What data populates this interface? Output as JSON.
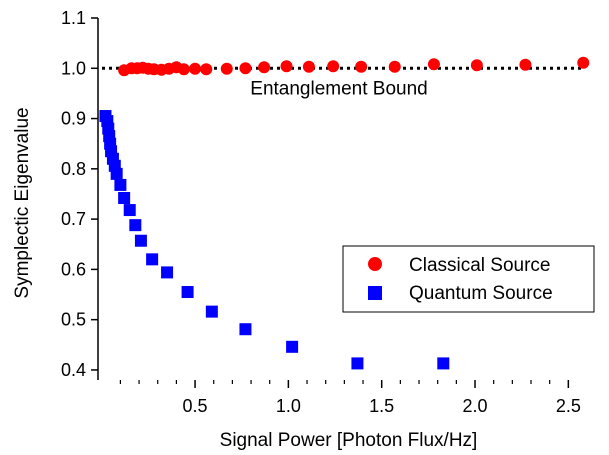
{
  "chart_data": {
    "type": "scatter",
    "title": "",
    "xlabel": "Signal Power [Photon Flux/Hz]",
    "ylabel": "Symplectic Eigenvalue",
    "xlim": [
      -0.02,
      2.6
    ],
    "ylim": [
      0.38,
      1.1
    ],
    "x_ticks": [
      0.5,
      1.0,
      1.5,
      2.0,
      2.5
    ],
    "x_tick_labels": [
      "0.5",
      "1.0",
      "1.5",
      "2.0",
      "2.5"
    ],
    "y_ticks": [
      0.4,
      0.5,
      0.6,
      0.7,
      0.8,
      0.9,
      1.0,
      1.1
    ],
    "y_tick_labels": [
      "0.4",
      "0.5",
      "0.6",
      "0.7",
      "0.8",
      "0.9",
      "1.0",
      "1.1"
    ],
    "grid": false,
    "legend_position": "lower-right",
    "reference_line": {
      "y": 1.0,
      "style": "dotted",
      "label": "Entanglement Bound"
    },
    "series": [
      {
        "name": "Classical Source",
        "marker": "circle",
        "color": "#ff0000",
        "x": [
          0.12,
          0.16,
          0.19,
          0.22,
          0.25,
          0.28,
          0.32,
          0.36,
          0.4,
          0.44,
          0.5,
          0.56,
          0.67,
          0.77,
          0.87,
          0.99,
          1.11,
          1.24,
          1.39,
          1.57,
          1.78,
          2.01,
          2.27,
          2.58
        ],
        "y": [
          0.996,
          1.0,
          1.0,
          1.001,
          0.999,
          0.998,
          0.997,
          0.999,
          1.002,
          0.998,
          0.999,
          0.998,
          0.999,
          1.0,
          1.002,
          1.004,
          1.003,
          1.004,
          1.003,
          1.003,
          1.008,
          1.006,
          1.007,
          1.011
        ]
      },
      {
        "name": "Quantum Source",
        "marker": "square",
        "color": "#0000ff",
        "x": [
          0.02,
          0.03,
          0.035,
          0.04,
          0.045,
          0.05,
          0.06,
          0.07,
          0.08,
          0.1,
          0.12,
          0.15,
          0.18,
          0.21,
          0.27,
          0.35,
          0.46,
          0.59,
          0.77,
          1.02,
          1.37,
          1.83
        ],
        "y": [
          0.905,
          0.895,
          0.88,
          0.865,
          0.85,
          0.835,
          0.82,
          0.806,
          0.79,
          0.768,
          0.742,
          0.718,
          0.688,
          0.657,
          0.62,
          0.594,
          0.555,
          0.516,
          0.481,
          0.446,
          0.413,
          0.413
        ]
      }
    ]
  }
}
